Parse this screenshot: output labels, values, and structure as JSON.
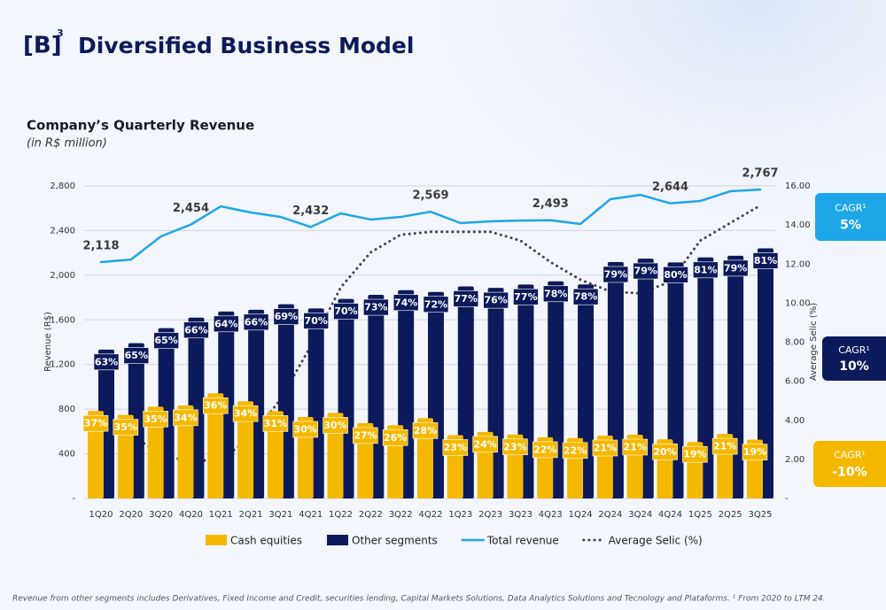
{
  "header": {
    "logo": "[B]",
    "logo_sup": "3",
    "title": "Diversified Business Model"
  },
  "chart_data": {
    "type": "bar",
    "title": "Company’s Quarterly Revenue",
    "subtitle": "(in R$ million)",
    "y_label": "Revenue (R$)",
    "y2_label": "Average Selic (%)",
    "categories": [
      "1Q20",
      "2Q20",
      "3Q20",
      "4Q20",
      "1Q21",
      "2Q21",
      "3Q21",
      "4Q21",
      "1Q22",
      "2Q22",
      "3Q22",
      "4Q22",
      "1Q23",
      "2Q23",
      "3Q23",
      "4Q23",
      "1Q24",
      "2Q24",
      "3Q24",
      "4Q24",
      "1Q25",
      "2Q25",
      "3Q25"
    ],
    "ylim": [
      0,
      2800
    ],
    "yticks": [
      {
        "value": 0,
        "label": "-"
      },
      400,
      800,
      {
        "value": 1200,
        "label": "1,200"
      },
      {
        "value": 1600,
        "label": "1,600"
      },
      {
        "value": 2000,
        "label": "2,000"
      },
      {
        "value": 2400,
        "label": "2,400"
      },
      {
        "value": 2800,
        "label": "2,800"
      }
    ],
    "y2lim": [
      0,
      16
    ],
    "y2ticks": [
      {
        "value": 0,
        "label": "-"
      },
      {
        "value": 2,
        "label": "2.00"
      },
      {
        "value": 4,
        "label": "4.00"
      },
      {
        "value": 6,
        "label": "6.00"
      },
      {
        "value": 8,
        "label": "8.00"
      },
      {
        "value": 10,
        "label": "10.00"
      },
      {
        "value": 12,
        "label": "12.00"
      },
      {
        "value": 14,
        "label": "14.00"
      },
      {
        "value": 16,
        "label": "16.00"
      }
    ],
    "grid": true,
    "series": [
      {
        "name": "Cash equities",
        "type": "bar",
        "color": "#f5b800",
        "values": [
          784,
          749,
          822,
          834,
          942,
          871,
          782,
          730,
          766,
          675,
          656,
          719,
          567,
          596,
          573,
          548,
          541,
          563,
          571,
          529,
          506,
          578,
          526
        ],
        "labels": [
          "37%",
          "35%",
          "35%",
          "34%",
          "36%",
          "34%",
          "31%",
          "30%",
          "30%",
          "27%",
          "26%",
          "28%",
          "23%",
          "24%",
          "23%",
          "22%",
          "22%",
          "21%",
          "21%",
          "20%",
          "19%",
          "21%",
          "19%"
        ]
      },
      {
        "name": "Other segments",
        "type": "bar",
        "color": "#0c1a5b",
        "values": [
          1334,
          1391,
          1526,
          1620,
          1675,
          1691,
          1740,
          1702,
          1788,
          1824,
          1866,
          1850,
          1900,
          1887,
          1917,
          1945,
          1918,
          2118,
          2149,
          2115,
          2159,
          2174,
          2241
        ],
        "labels": [
          "63%",
          "65%",
          "65%",
          "66%",
          "64%",
          "66%",
          "69%",
          "70%",
          "70%",
          "73%",
          "74%",
          "72%",
          "77%",
          "76%",
          "77%",
          "78%",
          "78%",
          "79%",
          "79%",
          "80%",
          "81%",
          "79%",
          "81%"
        ]
      },
      {
        "name": "Total revenue",
        "type": "line",
        "color": "#1ea7e8",
        "values": [
          2118,
          2140,
          2348,
          2454,
          2617,
          2562,
          2522,
          2432,
          2554,
          2499,
          2522,
          2569,
          2467,
          2483,
          2490,
          2493,
          2459,
          2681,
          2720,
          2644,
          2665,
          2752,
          2767
        ],
        "value_labels": [
          "2,118",
          null,
          null,
          "2,454",
          null,
          null,
          null,
          "2,432",
          null,
          null,
          null,
          "2,569",
          null,
          null,
          null,
          "2,493",
          null,
          null,
          null,
          "2,644",
          null,
          null,
          "2,767"
        ]
      },
      {
        "name": "Average Selic (%)",
        "type": "line",
        "color": "#444444",
        "axis": "y2",
        "dotted": true,
        "values": [
          null,
          3.3,
          2.2,
          1.9,
          2.0,
          3.1,
          5.1,
          7.8,
          10.8,
          12.6,
          13.5,
          13.65,
          13.65,
          13.65,
          13.2,
          12.1,
          11.2,
          10.6,
          10.5,
          11.1,
          13.2,
          14.1,
          15.0
        ]
      }
    ],
    "cagr": [
      {
        "label": "CAGR¹",
        "value": "5%",
        "color": "#1ea7e8"
      },
      {
        "label": "CAGR¹",
        "value": "10%",
        "color": "#0c1a5b"
      },
      {
        "label": "CAGR¹",
        "value": "-10%",
        "color": "#f5b800"
      }
    ]
  },
  "footnote": "Revenue from other segments includes Derivatives, Fixed Income and Credit, securities lending, Capital Markets Solutions, Data Analytics Solutions and Tecnology and Plataforms. ¹ From 2020 to LTM 24."
}
